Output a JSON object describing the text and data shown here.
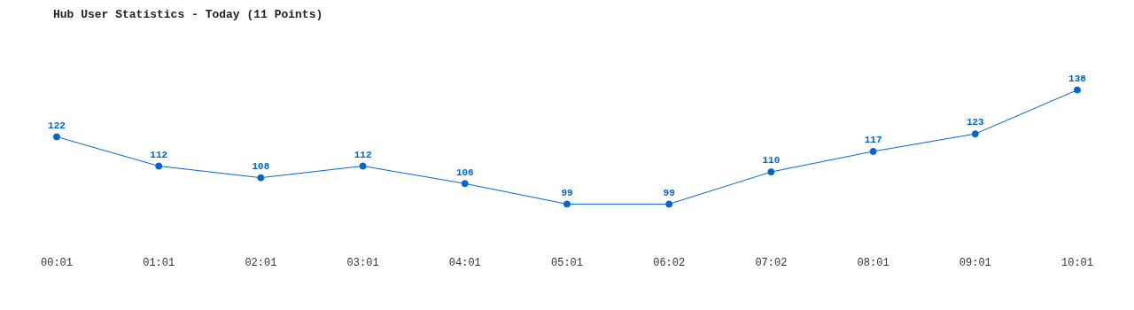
{
  "chart_data": {
    "type": "line",
    "title": "Hub User Statistics - Today (11 Points)",
    "categories": [
      "00:01",
      "01:01",
      "02:01",
      "03:01",
      "04:01",
      "05:01",
      "06:02",
      "07:02",
      "08:01",
      "09:01",
      "10:01"
    ],
    "series": [
      {
        "color": "#0066cc",
        "values": [
          122,
          112,
          108,
          112,
          106,
          99,
          99,
          110,
          117,
          123,
          138
        ]
      }
    ],
    "data_labels": true,
    "grid": false,
    "legend": false,
    "marker": "circle",
    "line_style": "solid",
    "tick_labels": "x"
  }
}
